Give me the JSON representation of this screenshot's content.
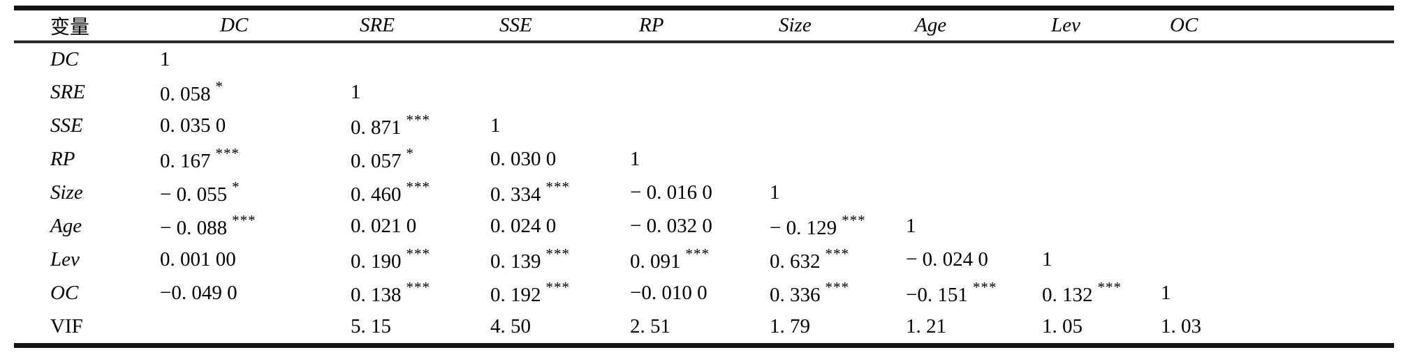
{
  "page": {
    "background": "#ffffff",
    "text_color": "#000000",
    "rule_color": "#141414"
  },
  "table": {
    "kind": "correlation-matrix",
    "columns": [
      {
        "label": "变量",
        "italic": false
      },
      {
        "label": "DC",
        "italic": true
      },
      {
        "label": "SRE",
        "italic": true
      },
      {
        "label": "SSE",
        "italic": true
      },
      {
        "label": "RP",
        "italic": true
      },
      {
        "label": "Size",
        "italic": true
      },
      {
        "label": "Age",
        "italic": true
      },
      {
        "label": "Lev",
        "italic": true
      },
      {
        "label": "OC",
        "italic": true
      }
    ],
    "rows": [
      {
        "label": "DC",
        "italic": true,
        "cells": [
          {
            "v": "1",
            "sig": ""
          },
          {
            "v": "",
            "sig": ""
          },
          {
            "v": "",
            "sig": ""
          },
          {
            "v": "",
            "sig": ""
          },
          {
            "v": "",
            "sig": ""
          },
          {
            "v": "",
            "sig": ""
          },
          {
            "v": "",
            "sig": ""
          },
          {
            "v": "",
            "sig": ""
          }
        ]
      },
      {
        "label": "SRE",
        "italic": true,
        "cells": [
          {
            "v": "0. 058",
            "sig": "*"
          },
          {
            "v": "1",
            "sig": ""
          },
          {
            "v": "",
            "sig": ""
          },
          {
            "v": "",
            "sig": ""
          },
          {
            "v": "",
            "sig": ""
          },
          {
            "v": "",
            "sig": ""
          },
          {
            "v": "",
            "sig": ""
          },
          {
            "v": "",
            "sig": ""
          }
        ]
      },
      {
        "label": "SSE",
        "italic": true,
        "cells": [
          {
            "v": "0. 035 0",
            "sig": ""
          },
          {
            "v": "0. 871",
            "sig": "***"
          },
          {
            "v": "1",
            "sig": ""
          },
          {
            "v": "",
            "sig": ""
          },
          {
            "v": "",
            "sig": ""
          },
          {
            "v": "",
            "sig": ""
          },
          {
            "v": "",
            "sig": ""
          },
          {
            "v": "",
            "sig": ""
          }
        ]
      },
      {
        "label": "RP",
        "italic": true,
        "cells": [
          {
            "v": "0. 167",
            "sig": "***"
          },
          {
            "v": "0. 057",
            "sig": "*"
          },
          {
            "v": "0. 030 0",
            "sig": ""
          },
          {
            "v": "1",
            "sig": ""
          },
          {
            "v": "",
            "sig": ""
          },
          {
            "v": "",
            "sig": ""
          },
          {
            "v": "",
            "sig": ""
          },
          {
            "v": "",
            "sig": ""
          }
        ]
      },
      {
        "label": "Size",
        "italic": true,
        "cells": [
          {
            "v": "− 0. 055",
            "sig": "*"
          },
          {
            "v": "0. 460",
            "sig": "***"
          },
          {
            "v": "0. 334",
            "sig": "***"
          },
          {
            "v": "− 0. 016 0",
            "sig": ""
          },
          {
            "v": "1",
            "sig": ""
          },
          {
            "v": "",
            "sig": ""
          },
          {
            "v": "",
            "sig": ""
          },
          {
            "v": "",
            "sig": ""
          }
        ]
      },
      {
        "label": "Age",
        "italic": true,
        "cells": [
          {
            "v": "− 0. 088",
            "sig": "***"
          },
          {
            "v": "0. 021 0",
            "sig": ""
          },
          {
            "v": "0. 024 0",
            "sig": ""
          },
          {
            "v": "− 0. 032 0",
            "sig": ""
          },
          {
            "v": "− 0. 129",
            "sig": "***"
          },
          {
            "v": "1",
            "sig": ""
          },
          {
            "v": "",
            "sig": ""
          },
          {
            "v": "",
            "sig": ""
          }
        ]
      },
      {
        "label": "Lev",
        "italic": true,
        "cells": [
          {
            "v": "0. 001 00",
            "sig": ""
          },
          {
            "v": "0. 190",
            "sig": "***"
          },
          {
            "v": "0. 139",
            "sig": "***"
          },
          {
            "v": "0. 091",
            "sig": "***"
          },
          {
            "v": "0. 632",
            "sig": "***"
          },
          {
            "v": "− 0. 024 0",
            "sig": ""
          },
          {
            "v": "1",
            "sig": ""
          },
          {
            "v": "",
            "sig": ""
          }
        ]
      },
      {
        "label": "OC",
        "italic": true,
        "cells": [
          {
            "v": "−0. 049 0",
            "sig": ""
          },
          {
            "v": "0. 138",
            "sig": "***"
          },
          {
            "v": "0. 192",
            "sig": "***"
          },
          {
            "v": "−0. 010 0",
            "sig": ""
          },
          {
            "v": "0. 336",
            "sig": "***"
          },
          {
            "v": "−0. 151",
            "sig": "***"
          },
          {
            "v": "0. 132",
            "sig": "***"
          },
          {
            "v": "1",
            "sig": ""
          }
        ]
      },
      {
        "label": "VIF",
        "italic": false,
        "cells": [
          {
            "v": "",
            "sig": ""
          },
          {
            "v": "5. 15",
            "sig": ""
          },
          {
            "v": "4. 50",
            "sig": ""
          },
          {
            "v": "2. 51",
            "sig": ""
          },
          {
            "v": "1. 79",
            "sig": ""
          },
          {
            "v": "1. 21",
            "sig": ""
          },
          {
            "v": "1. 05",
            "sig": ""
          },
          {
            "v": "1. 03",
            "sig": ""
          }
        ]
      }
    ]
  }
}
